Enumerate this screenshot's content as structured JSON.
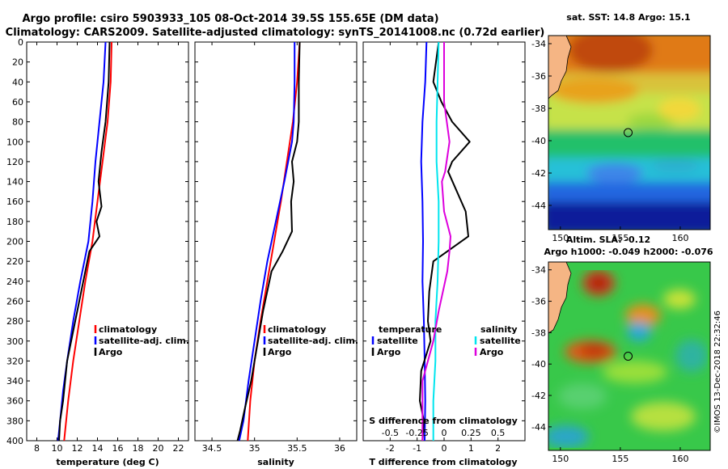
{
  "title_line1": "Argo profile: csiro 5903933_105 08-Oct-2014 39.5S 155.65E (DM data)",
  "title_line2": "Climatology: CARS2009. Satellite-adjusted climatology: synTS_20141008.nc (0.72d earlier)",
  "credit": "©IMOS 13-Dec-2018 22:32:46",
  "colors": {
    "clim": "#ff0000",
    "sat": "#0000ff",
    "argo": "#000000",
    "sat_s": "#00e5ee",
    "argo_s": "#dd00dd"
  },
  "chart_data": [
    {
      "type": "line",
      "id": "temperature",
      "xlabel": "temperature (deg C)",
      "xlim": [
        7,
        23
      ],
      "ylim": [
        0,
        400
      ],
      "xticks": [
        8,
        10,
        12,
        14,
        16,
        18,
        20,
        22
      ],
      "yticks": [
        0,
        20,
        40,
        60,
        80,
        100,
        120,
        140,
        160,
        180,
        200,
        220,
        240,
        260,
        280,
        300,
        320,
        340,
        360,
        380,
        400
      ],
      "legend": [
        "climatology",
        "satellite-adj. clim.",
        "Argo"
      ],
      "series": [
        {
          "name": "climatology",
          "color": "clim",
          "x": [
            15.4,
            15.3,
            15.0,
            14.5,
            14.0,
            13.5,
            12.8,
            12.2,
            11.6,
            11.1,
            10.7
          ],
          "y": [
            0,
            40,
            80,
            120,
            160,
            200,
            240,
            280,
            320,
            360,
            400
          ]
        },
        {
          "name": "satellite-adj. clim.",
          "color": "sat",
          "x": [
            14.8,
            14.6,
            14.2,
            13.8,
            13.5,
            13.1,
            12.3,
            11.6,
            11.0,
            10.6,
            10.3,
            10.1
          ],
          "y": [
            0,
            40,
            80,
            120,
            160,
            200,
            240,
            280,
            320,
            350,
            380,
            400
          ]
        },
        {
          "name": "Argo",
          "color": "argo",
          "x": [
            15.2,
            15.1,
            14.8,
            14.4,
            14.1,
            14.4,
            13.9,
            14.2,
            13.2,
            12.6,
            11.8,
            11.0,
            10.6,
            10.3,
            10.2
          ],
          "y": [
            0,
            40,
            80,
            110,
            140,
            165,
            180,
            195,
            210,
            240,
            280,
            320,
            360,
            380,
            400
          ]
        }
      ]
    },
    {
      "type": "line",
      "id": "salinity",
      "xlabel": "salinity",
      "xlim": [
        34.3,
        36.2
      ],
      "ylim": [
        0,
        400
      ],
      "xticks": [
        34.5,
        35,
        35.5,
        36
      ],
      "legend": [
        "climatology",
        "satellite-adj. clim.",
        "Argo"
      ],
      "series": [
        {
          "name": "climatology",
          "color": "clim",
          "x": [
            35.53,
            35.5,
            35.45,
            35.38,
            35.31,
            35.23,
            35.15,
            35.07,
            35.0,
            34.95,
            34.92
          ],
          "y": [
            0,
            40,
            80,
            120,
            160,
            200,
            240,
            280,
            320,
            360,
            400
          ]
        },
        {
          "name": "satellite-adj. clim.",
          "color": "sat",
          "x": [
            35.47,
            35.47,
            35.46,
            35.44,
            35.35,
            35.25,
            35.15,
            35.07,
            35.0,
            34.93,
            34.87,
            34.82
          ],
          "y": [
            0,
            40,
            80,
            100,
            140,
            180,
            220,
            260,
            300,
            340,
            380,
            400
          ]
        },
        {
          "name": "Argo",
          "color": "argo",
          "x": [
            35.53,
            35.52,
            35.52,
            35.5,
            35.44,
            35.46,
            35.43,
            35.44,
            35.33,
            35.2,
            35.1,
            35.02,
            34.96,
            34.88,
            34.83,
            34.8
          ],
          "y": [
            0,
            40,
            80,
            100,
            120,
            140,
            160,
            190,
            210,
            230,
            270,
            310,
            340,
            370,
            390,
            400
          ]
        }
      ]
    },
    {
      "type": "line",
      "id": "difference",
      "xlabel": "T difference from climatology",
      "xlim": [
        -3,
        3
      ],
      "ylim": [
        0,
        400
      ],
      "xticks": [
        -2,
        -1,
        0,
        1,
        2
      ],
      "s_axis_label": "S difference from climatology",
      "s_xlim": [
        -0.75,
        0.75
      ],
      "s_xticks": [
        -0.5,
        -0.25,
        0,
        0.25,
        0.5
      ],
      "s_ticklabels": [
        "-0.5",
        "-0.25",
        "0",
        "0.25",
        "0.5"
      ],
      "legend_left_title": "temperature",
      "legend_right_title": "salinity",
      "legend": [
        "satellite",
        "Argo",
        "satellite",
        "Argo"
      ],
      "series": [
        {
          "name": "satellite",
          "group": "temperature",
          "axis": "T",
          "color": "sat",
          "x": [
            -0.65,
            -0.7,
            -0.8,
            -0.85,
            -0.8,
            -0.78,
            -0.8,
            -0.75,
            -0.72,
            -0.7,
            -0.72
          ],
          "y": [
            0,
            40,
            80,
            120,
            160,
            200,
            240,
            280,
            320,
            360,
            400
          ]
        },
        {
          "name": "Argo",
          "group": "temperature",
          "axis": "T",
          "color": "argo",
          "x": [
            -0.2,
            -0.4,
            -0.1,
            0.3,
            0.95,
            0.3,
            0.15,
            0.8,
            0.9,
            -0.4,
            -0.55,
            -0.6,
            -0.5,
            -0.85,
            -0.9,
            -0.75,
            -0.8
          ],
          "y": [
            0,
            40,
            60,
            80,
            100,
            120,
            130,
            170,
            195,
            220,
            250,
            280,
            300,
            330,
            360,
            380,
            400
          ]
        },
        {
          "name": "satellite",
          "group": "salinity",
          "axis": "S",
          "color": "sat_s",
          "x": [
            -0.05,
            -0.06,
            -0.07,
            -0.07,
            -0.05,
            -0.05,
            -0.06,
            -0.08,
            -0.08,
            -0.1,
            -0.1
          ],
          "y": [
            0,
            40,
            80,
            120,
            160,
            200,
            240,
            280,
            320,
            360,
            400
          ]
        },
        {
          "name": "Argo",
          "group": "salinity",
          "axis": "S",
          "color": "argo_s",
          "x": [
            0.0,
            0.0,
            0.0,
            0.05,
            0.01,
            -0.02,
            0.0,
            0.06,
            0.05,
            0.03,
            -0.05,
            -0.1,
            -0.15,
            -0.2,
            -0.2,
            -0.2
          ],
          "y": [
            0,
            20,
            60,
            100,
            130,
            140,
            170,
            195,
            210,
            230,
            270,
            300,
            320,
            340,
            380,
            400
          ]
        }
      ]
    },
    {
      "type": "heatmap",
      "id": "sst_map",
      "title": "sat. SST: 14.8 Argo: 15.1",
      "xlim": [
        149,
        162.5
      ],
      "ylim": [
        -45.5,
        -33.5
      ],
      "xticks": [
        150,
        155,
        160
      ],
      "yticks": [
        -34,
        -36,
        -38,
        -40,
        -42,
        -44
      ],
      "marker": {
        "lon": 155.65,
        "lat": -39.5
      }
    },
    {
      "type": "heatmap",
      "id": "sla_map",
      "title": "Altim. SLA: -0.12",
      "subtitle": "Argo h1000: -0.049 h2000: -0.076",
      "xlim": [
        149,
        162.5
      ],
      "ylim": [
        -45.5,
        -33.5
      ],
      "xticks": [
        150,
        155,
        160
      ],
      "yticks": [
        -34,
        -36,
        -38,
        -40,
        -42,
        -44
      ],
      "marker": {
        "lon": 155.65,
        "lat": -39.5
      }
    }
  ]
}
